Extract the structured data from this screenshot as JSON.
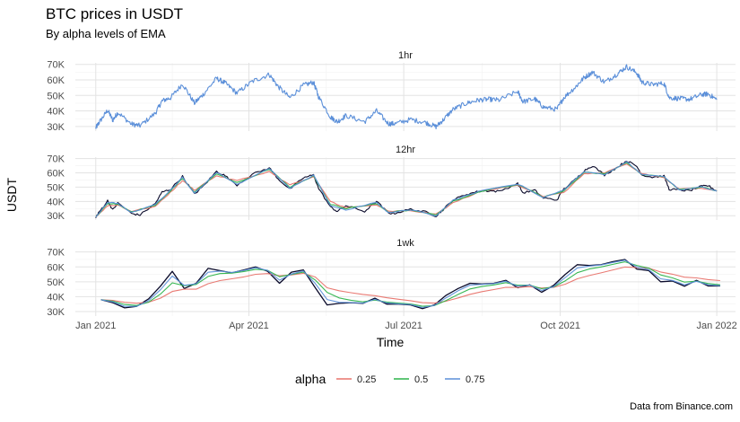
{
  "chart_data": {
    "type": "line",
    "title": "BTC prices in USDT",
    "subtitle": "By alpha levels of EMA",
    "xlabel": "Time",
    "ylabel": "USDT",
    "caption": "Data from Binance.com",
    "x_range": [
      "2020-12-20",
      "2022-01-12"
    ],
    "ylim": [
      27000,
      71000
    ],
    "y_ticks": [
      30000,
      40000,
      50000,
      60000,
      70000
    ],
    "y_tick_labels": [
      "30K",
      "40K",
      "50K",
      "60K",
      "70K"
    ],
    "x_ticks": [
      "2021-01-01",
      "2021-04-01",
      "2021-07-01",
      "2021-10-01",
      "2022-01-01"
    ],
    "x_tick_labels": [
      "Jan 2021",
      "Apr 2021",
      "Jul 2021",
      "Oct 2021",
      "Jan 2022"
    ],
    "grid": true,
    "legend": {
      "title": "alpha",
      "placement": "bottom",
      "entries": [
        "0.25",
        "0.5",
        "0.75"
      ]
    },
    "panels": [
      {
        "label": "1hr",
        "price": {
          "dates": [
            "2021-01-01",
            "2021-01-03",
            "2021-01-08",
            "2021-01-11",
            "2021-01-14",
            "2021-01-22",
            "2021-01-27",
            "2021-02-05",
            "2021-02-09",
            "2021-02-14",
            "2021-02-21",
            "2021-02-28",
            "2021-03-05",
            "2021-03-13",
            "2021-03-18",
            "2021-03-25",
            "2021-04-03",
            "2021-04-13",
            "2021-04-18",
            "2021-04-25",
            "2021-05-03",
            "2021-05-09",
            "2021-05-12",
            "2021-05-19",
            "2021-05-23",
            "2021-05-28",
            "2021-06-08",
            "2021-06-15",
            "2021-06-22",
            "2021-06-26",
            "2021-07-05",
            "2021-07-14",
            "2021-07-20",
            "2021-07-24",
            "2021-07-30",
            "2021-08-07",
            "2021-08-14",
            "2021-08-20",
            "2021-08-26",
            "2021-09-06",
            "2021-09-09",
            "2021-09-16",
            "2021-09-21",
            "2021-09-29",
            "2021-10-03",
            "2021-10-10",
            "2021-10-15",
            "2021-10-20",
            "2021-10-27",
            "2021-11-03",
            "2021-11-09",
            "2021-11-15",
            "2021-11-18",
            "2021-11-24",
            "2021-12-01",
            "2021-12-04",
            "2021-12-10",
            "2021-12-16",
            "2021-12-23",
            "2021-12-27",
            "2022-01-01"
          ],
          "values": [
            29000,
            32500,
            40500,
            34000,
            39000,
            31500,
            30500,
            38500,
            46500,
            48500,
            57500,
            45000,
            50500,
            61000,
            58000,
            51500,
            59000,
            63500,
            56000,
            48500,
            56500,
            58500,
            49000,
            36000,
            33000,
            37000,
            33000,
            40000,
            31800,
            31800,
            34500,
            32500,
            29800,
            34000,
            41000,
            45000,
            47000,
            47500,
            47000,
            52500,
            46000,
            47800,
            42500,
            41000,
            48500,
            55500,
            61500,
            65000,
            58500,
            63500,
            68500,
            64500,
            58500,
            57000,
            57800,
            48500,
            48000,
            47500,
            50500,
            51000,
            47200
          ]
        }
      },
      {
        "label": "12hr",
        "price": {
          "dates": [
            "2021-01-01",
            "2021-01-03",
            "2021-01-08",
            "2021-01-11",
            "2021-01-14",
            "2021-01-22",
            "2021-01-27",
            "2021-02-05",
            "2021-02-09",
            "2021-02-14",
            "2021-02-21",
            "2021-02-28",
            "2021-03-05",
            "2021-03-13",
            "2021-03-18",
            "2021-03-25",
            "2021-04-03",
            "2021-04-13",
            "2021-04-18",
            "2021-04-25",
            "2021-05-03",
            "2021-05-09",
            "2021-05-12",
            "2021-05-19",
            "2021-05-23",
            "2021-05-28",
            "2021-06-08",
            "2021-06-15",
            "2021-06-22",
            "2021-06-26",
            "2021-07-05",
            "2021-07-14",
            "2021-07-20",
            "2021-07-24",
            "2021-07-30",
            "2021-08-07",
            "2021-08-14",
            "2021-08-20",
            "2021-08-26",
            "2021-09-06",
            "2021-09-09",
            "2021-09-16",
            "2021-09-21",
            "2021-09-29",
            "2021-10-03",
            "2021-10-10",
            "2021-10-15",
            "2021-10-20",
            "2021-10-27",
            "2021-11-03",
            "2021-11-09",
            "2021-11-15",
            "2021-11-18",
            "2021-11-24",
            "2021-12-01",
            "2021-12-04",
            "2021-12-10",
            "2021-12-16",
            "2021-12-23",
            "2021-12-27",
            "2022-01-01"
          ],
          "values": [
            29000,
            32500,
            40500,
            34000,
            39000,
            31500,
            30500,
            38500,
            46500,
            48500,
            57500,
            45000,
            50500,
            61000,
            58000,
            51500,
            59000,
            63500,
            56000,
            48500,
            56500,
            58500,
            49000,
            36000,
            33000,
            37000,
            33000,
            40000,
            31800,
            31800,
            34500,
            32500,
            29800,
            34000,
            41000,
            45000,
            47000,
            47500,
            47000,
            52500,
            46000,
            47800,
            42500,
            41000,
            48500,
            55500,
            61500,
            65000,
            58500,
            63500,
            68500,
            64500,
            58500,
            57000,
            57800,
            48500,
            48000,
            47500,
            50500,
            51000,
            47200
          ]
        },
        "ema": {
          "dates": [
            "2021-01-01",
            "2021-01-08",
            "2021-01-14",
            "2021-01-22",
            "2021-02-05",
            "2021-02-14",
            "2021-02-21",
            "2021-02-28",
            "2021-03-13",
            "2021-03-25",
            "2021-04-13",
            "2021-04-25",
            "2021-05-09",
            "2021-05-19",
            "2021-05-28",
            "2021-06-15",
            "2021-06-22",
            "2021-07-05",
            "2021-07-20",
            "2021-07-30",
            "2021-08-14",
            "2021-09-06",
            "2021-09-21",
            "2021-10-03",
            "2021-10-15",
            "2021-10-27",
            "2021-11-09",
            "2021-11-18",
            "2021-12-01",
            "2021-12-10",
            "2021-12-23",
            "2022-01-01"
          ],
          "alpha_0.25": [
            29000,
            37000,
            37500,
            33000,
            36500,
            46500,
            54500,
            48000,
            58000,
            54500,
            61000,
            51500,
            57000,
            40000,
            35500,
            37500,
            33000,
            33500,
            31000,
            39000,
            46500,
            51500,
            43500,
            46000,
            59500,
            60000,
            66000,
            59500,
            56500,
            48500,
            49500,
            47500
          ],
          "alpha_0.5": [
            29000,
            38500,
            38000,
            32500,
            37500,
            47500,
            56000,
            46500,
            59500,
            53000,
            62500,
            50000,
            57800,
            38000,
            35000,
            38500,
            32500,
            34000,
            30500,
            40000,
            46800,
            52000,
            43000,
            47000,
            60500,
            59200,
            67000,
            59000,
            57000,
            48200,
            50000,
            47400
          ],
          "alpha_0.75": [
            29000,
            39500,
            38600,
            32000,
            38000,
            48000,
            57000,
            45500,
            60500,
            52000,
            63000,
            49000,
            58200,
            37000,
            34000,
            39300,
            32000,
            34300,
            30000,
            40800,
            47000,
            52300,
            42700,
            47800,
            61000,
            58800,
            67800,
            58700,
            57500,
            48100,
            50300,
            47300
          ]
        }
      },
      {
        "label": "1wk",
        "price": {
          "dates": [
            "2021-01-04",
            "2021-01-11",
            "2021-01-18",
            "2021-01-25",
            "2021-02-01",
            "2021-02-08",
            "2021-02-15",
            "2021-02-22",
            "2021-03-01",
            "2021-03-08",
            "2021-03-15",
            "2021-03-22",
            "2021-03-29",
            "2021-04-05",
            "2021-04-12",
            "2021-04-19",
            "2021-04-26",
            "2021-05-03",
            "2021-05-10",
            "2021-05-17",
            "2021-05-24",
            "2021-05-31",
            "2021-06-07",
            "2021-06-14",
            "2021-06-21",
            "2021-06-28",
            "2021-07-05",
            "2021-07-12",
            "2021-07-19",
            "2021-07-26",
            "2021-08-02",
            "2021-08-09",
            "2021-08-16",
            "2021-08-23",
            "2021-08-30",
            "2021-09-06",
            "2021-09-13",
            "2021-09-20",
            "2021-09-27",
            "2021-10-04",
            "2021-10-11",
            "2021-10-18",
            "2021-10-25",
            "2021-11-01",
            "2021-11-08",
            "2021-11-15",
            "2021-11-22",
            "2021-11-29",
            "2021-12-06",
            "2021-12-13",
            "2021-12-20",
            "2021-12-27",
            "2022-01-03"
          ],
          "values": [
            38000,
            36000,
            32500,
            33500,
            38500,
            47000,
            57000,
            45500,
            49000,
            59000,
            57500,
            56000,
            58000,
            60000,
            57000,
            49000,
            56500,
            58000,
            46000,
            34500,
            35500,
            36000,
            35500,
            39000,
            35000,
            35000,
            34500,
            32000,
            34500,
            41000,
            45500,
            49000,
            48500,
            49000,
            51000,
            46000,
            48000,
            43000,
            47500,
            55000,
            61500,
            61000,
            61500,
            63500,
            65000,
            58500,
            57500,
            50000,
            50500,
            47000,
            51000,
            47200,
            47200
          ]
        },
        "ema": {
          "dates": [
            "2021-01-04",
            "2021-01-11",
            "2021-01-18",
            "2021-01-25",
            "2021-02-01",
            "2021-02-08",
            "2021-02-15",
            "2021-02-22",
            "2021-03-01",
            "2021-03-08",
            "2021-03-15",
            "2021-03-22",
            "2021-03-29",
            "2021-04-05",
            "2021-04-12",
            "2021-04-19",
            "2021-04-26",
            "2021-05-03",
            "2021-05-10",
            "2021-05-17",
            "2021-05-24",
            "2021-05-31",
            "2021-06-07",
            "2021-06-14",
            "2021-06-21",
            "2021-06-28",
            "2021-07-05",
            "2021-07-12",
            "2021-07-19",
            "2021-07-26",
            "2021-08-02",
            "2021-08-09",
            "2021-08-16",
            "2021-08-23",
            "2021-08-30",
            "2021-09-06",
            "2021-09-13",
            "2021-09-20",
            "2021-09-27",
            "2021-10-04",
            "2021-10-11",
            "2021-10-18",
            "2021-10-25",
            "2021-11-01",
            "2021-11-08",
            "2021-11-15",
            "2021-11-22",
            "2021-11-29",
            "2021-12-06",
            "2021-12-13",
            "2021-12-20",
            "2021-12-27",
            "2022-01-03"
          ],
          "alpha_0.25": [
            38000,
            37500,
            36250,
            35600,
            36300,
            39000,
            43500,
            45000,
            45000,
            48700,
            50800,
            52000,
            53300,
            55000,
            55500,
            54000,
            54600,
            55700,
            53200,
            46000,
            44000,
            42700,
            41500,
            40700,
            39300,
            38300,
            37300,
            36000,
            35700,
            37000,
            39200,
            41600,
            43400,
            44800,
            46300,
            46200,
            46700,
            45800,
            46200,
            48400,
            52000,
            54200,
            56000,
            58000,
            59900,
            59600,
            59100,
            56600,
            55100,
            53100,
            52600,
            51500,
            50800
          ],
          "alpha_0.5": [
            38000,
            37000,
            34800,
            34100,
            36300,
            41700,
            49300,
            47400,
            48200,
            53600,
            55500,
            55800,
            56900,
            58400,
            57700,
            53400,
            54900,
            56500,
            51200,
            42900,
            39200,
            37600,
            36500,
            37700,
            36400,
            35700,
            35100,
            33600,
            34000,
            37500,
            41500,
            45200,
            46800,
            47900,
            49400,
            47700,
            47800,
            45400,
            46500,
            50700,
            56100,
            58600,
            60000,
            61700,
            63400,
            61000,
            59200,
            54600,
            52600,
            49800,
            50400,
            48800,
            48000
          ],
          "alpha_0.75": [
            38000,
            36500,
            33500,
            33500,
            37300,
            44600,
            53900,
            47600,
            48700,
            56400,
            57200,
            56300,
            57600,
            59400,
            57600,
            51100,
            55200,
            57300,
            48800,
            38100,
            36200,
            36100,
            35700,
            38200,
            35800,
            35200,
            34700,
            32700,
            34100,
            39300,
            44000,
            47800,
            48300,
            48800,
            50400,
            47100,
            47800,
            44200,
            46700,
            52900,
            59300,
            60600,
            61300,
            63000,
            64500,
            60000,
            58100,
            52000,
            50900,
            48000,
            50300,
            48000,
            47400
          ]
        }
      }
    ]
  }
}
